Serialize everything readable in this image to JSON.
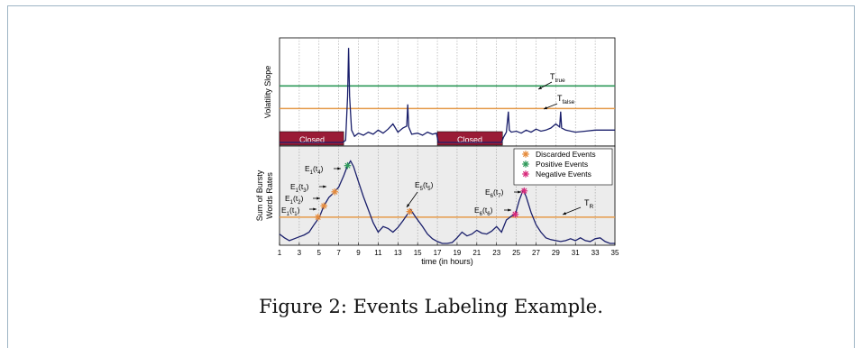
{
  "caption": "Figure 2: Events Labeling Example.",
  "chart_data": [
    {
      "type": "line",
      "panel": "top",
      "ylabel": "Volatility Slope",
      "xlim": [
        1,
        35
      ],
      "grid": "vertical dotted",
      "thresholds": [
        {
          "name": "T",
          "subscript": "true",
          "color": "#2e9a5a",
          "level": 0.55
        },
        {
          "name": "T",
          "subscript": "false",
          "color": "#e59a4a",
          "level": 0.33
        }
      ],
      "closed_periods": [
        {
          "label": "Closed",
          "x": [
            1.0,
            7.5
          ]
        },
        {
          "label": "Closed",
          "x": [
            17.0,
            23.6
          ]
        }
      ],
      "series": [
        {
          "color": "#1a1f6b",
          "x": [
            1.0,
            7.4,
            7.7,
            7.9,
            8.0,
            8.1,
            8.3,
            8.6,
            9.0,
            9.5,
            10.0,
            10.5,
            11.0,
            11.5,
            12.0,
            12.5,
            13.0,
            13.5,
            13.9,
            14.0,
            14.1,
            14.4,
            15.0,
            15.5,
            16.0,
            16.5,
            16.9,
            17.1,
            18.0,
            20.0,
            22.0,
            23.5,
            23.7,
            24.0,
            24.2,
            24.3,
            24.5,
            25.0,
            25.5,
            26.0,
            26.5,
            27.0,
            27.5,
            28.0,
            28.5,
            29.0,
            29.4,
            29.5,
            29.6,
            30.0,
            31.0,
            32.0,
            33.0,
            34.0,
            35.0
          ],
          "y": [
            0.0,
            0.0,
            0.02,
            0.45,
            0.92,
            0.45,
            0.12,
            0.06,
            0.09,
            0.07,
            0.1,
            0.08,
            0.12,
            0.09,
            0.13,
            0.18,
            0.1,
            0.14,
            0.16,
            0.37,
            0.15,
            0.08,
            0.09,
            0.07,
            0.1,
            0.08,
            0.09,
            0.0,
            0.0,
            0.0,
            0.0,
            0.0,
            0.05,
            0.1,
            0.3,
            0.12,
            0.1,
            0.11,
            0.09,
            0.12,
            0.1,
            0.13,
            0.11,
            0.12,
            0.14,
            0.18,
            0.15,
            0.3,
            0.14,
            0.12,
            0.1,
            0.11,
            0.12,
            0.12,
            0.12
          ]
        }
      ]
    },
    {
      "type": "line",
      "panel": "bottom",
      "ylabel": "Sum of Bursty Words Rates",
      "xlabel": "time (in hours)",
      "xticks": [
        1,
        3,
        5,
        7,
        9,
        11,
        13,
        15,
        17,
        19,
        21,
        23,
        25,
        27,
        29,
        31,
        33,
        35
      ],
      "xlim": [
        1,
        35
      ],
      "grid": "vertical dotted",
      "threshold": {
        "name": "T",
        "subscript": "R",
        "color": "#e59a4a",
        "level": 0.28
      },
      "legend": {
        "placement": "top-right",
        "entries": [
          {
            "label": "Discarded Events",
            "color": "#e58a3a"
          },
          {
            "label": "Positive Events",
            "color": "#2e9a5a"
          },
          {
            "label": "Negative Events",
            "color": "#d8287a"
          }
        ]
      },
      "series": [
        {
          "color": "#1a1f6b",
          "x": [
            1.0,
            1.5,
            2.0,
            2.5,
            3.0,
            3.5,
            4.0,
            4.5,
            4.9,
            5.0,
            5.5,
            6.0,
            6.5,
            7.0,
            7.5,
            7.9,
            8.2,
            8.5,
            9.0,
            9.5,
            10.0,
            10.5,
            11.0,
            11.5,
            12.0,
            12.5,
            13.0,
            13.5,
            13.9,
            14.3,
            14.8,
            15.5,
            16.0,
            16.5,
            17.0,
            17.5,
            18.0,
            18.5,
            19.0,
            19.5,
            20.0,
            20.5,
            21.0,
            21.5,
            22.0,
            22.5,
            23.0,
            23.5,
            24.0,
            24.5,
            24.9,
            25.3,
            25.7,
            26.0,
            26.5,
            27.0,
            27.5,
            28.0,
            28.5,
            29.0,
            29.5,
            30.0,
            30.5,
            31.0,
            31.5,
            32.0,
            32.5,
            33.0,
            33.5,
            34.0,
            34.5,
            35.0
          ],
          "y": [
            0.1,
            0.06,
            0.03,
            0.05,
            0.07,
            0.09,
            0.12,
            0.2,
            0.26,
            0.27,
            0.4,
            0.49,
            0.54,
            0.6,
            0.72,
            0.83,
            0.88,
            0.82,
            0.66,
            0.5,
            0.36,
            0.22,
            0.12,
            0.18,
            0.16,
            0.12,
            0.17,
            0.24,
            0.3,
            0.36,
            0.28,
            0.18,
            0.1,
            0.05,
            0.02,
            0.0,
            0.0,
            0.01,
            0.06,
            0.12,
            0.08,
            0.1,
            0.14,
            0.11,
            0.1,
            0.13,
            0.18,
            0.12,
            0.25,
            0.29,
            0.31,
            0.46,
            0.57,
            0.5,
            0.33,
            0.2,
            0.12,
            0.06,
            0.04,
            0.03,
            0.02,
            0.03,
            0.05,
            0.03,
            0.06,
            0.03,
            0.02,
            0.05,
            0.06,
            0.02,
            0.0,
            0.0
          ]
        }
      ],
      "events": [
        {
          "label": "E",
          "sub": "1",
          "time": "t",
          "time_sub": "1",
          "x": 4.9,
          "y": 0.28,
          "marker_color": "#e58a3a"
        },
        {
          "label": "E",
          "sub": "1",
          "time": "t",
          "time_sub": "2",
          "x": 5.5,
          "y": 0.4,
          "marker_color": "#e58a3a"
        },
        {
          "label": "E",
          "sub": "1",
          "time": "t",
          "time_sub": "3",
          "x": 6.6,
          "y": 0.55,
          "marker_color": "#e58a3a"
        },
        {
          "label": "E",
          "sub": "1",
          "time": "t",
          "time_sub": "4",
          "x": 7.9,
          "y": 0.83,
          "marker_color": "#2e9a5a"
        },
        {
          "label": "E",
          "sub": "5",
          "time": "t",
          "time_sub": "5",
          "x": 14.2,
          "y": 0.34,
          "marker_color": "#e58a3a"
        },
        {
          "label": "E",
          "sub": "6",
          "time": "t",
          "time_sub": "6",
          "x": 24.9,
          "y": 0.31,
          "marker_color": "#d8287a"
        },
        {
          "label": "E",
          "sub": "6",
          "time": "t",
          "time_sub": "7",
          "x": 25.8,
          "y": 0.56,
          "marker_color": "#d8287a"
        }
      ]
    }
  ]
}
